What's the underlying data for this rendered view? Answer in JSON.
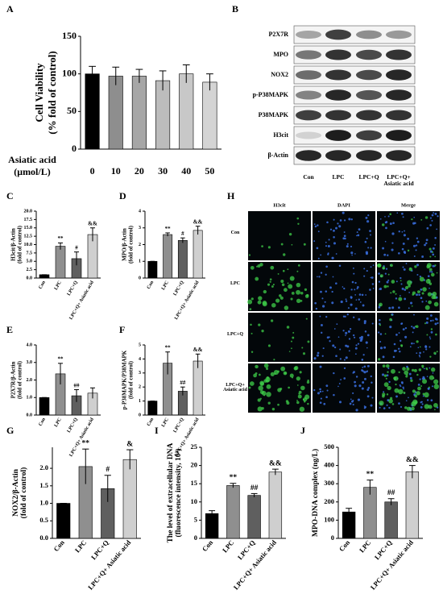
{
  "chart_data": [
    {
      "type": "bar",
      "label": "A",
      "ylabel": [
        "Cell Viability",
        "(% fold of control)"
      ],
      "xlabel": [
        "Asiatic acid",
        "(μmol/L)"
      ],
      "categories": [
        "0",
        "10",
        "20",
        "30",
        "40",
        "50"
      ],
      "values": [
        100,
        97,
        97,
        91,
        100,
        89
      ],
      "errors": [
        10,
        12,
        9,
        13,
        12,
        11
      ],
      "colors": [
        "#000000",
        "#8e8e8e",
        "#a6a6a6",
        "#bcbcbc",
        "#c8c8c8",
        "#d4d4d4"
      ],
      "ylim": [
        0,
        150
      ],
      "yticks": [
        0,
        50,
        100,
        150
      ]
    },
    {
      "type": "bar",
      "label": "C",
      "ylabel": [
        "H3cit/β-Actin",
        "(fold of control)"
      ],
      "categories": [
        "Con",
        "LPC",
        "LPC+Q",
        "LPC+Q+ Asiatic acid"
      ],
      "values": [
        1,
        9.5,
        5.8,
        13
      ],
      "errors": [
        0,
        1,
        2,
        2
      ],
      "annotations": [
        null,
        "**",
        "#",
        "&&"
      ],
      "colors": [
        "#000000",
        "#8f8f8f",
        "#5f5f5f",
        "#cfcfcf"
      ],
      "ylim": [
        0,
        20
      ],
      "yticks": [
        {
          "value": 0,
          "label": "0.0"
        },
        2.5,
        {
          "value": 5,
          "label": "5.0"
        },
        7.5,
        {
          "value": 10,
          "label": "10.0"
        },
        12.5,
        {
          "value": 15,
          "label": "15.0"
        },
        17.5,
        {
          "value": 20,
          "label": "20.0"
        }
      ]
    },
    {
      "type": "bar",
      "label": "D",
      "ylabel": [
        "MPO/β-Actin",
        "(fold of control)"
      ],
      "categories": [
        "Con",
        "LPC",
        "LPC+Q",
        "LPC+Q+ Asiatic acid"
      ],
      "values": [
        1,
        2.6,
        2.25,
        2.85
      ],
      "errors": [
        0,
        0.1,
        0.15,
        0.25
      ],
      "annotations": [
        null,
        "**",
        "#",
        "&&"
      ],
      "colors": [
        "#000000",
        "#8f8f8f",
        "#5f5f5f",
        "#cfcfcf"
      ],
      "ylim": [
        0,
        4
      ],
      "yticks": [
        0,
        1,
        2,
        3,
        4
      ]
    },
    {
      "type": "bar",
      "label": "E",
      "ylabel": [
        "P2X7R/β-Actin",
        "(fold of control)"
      ],
      "categories": [
        "Con",
        "LPC",
        "LPC+Q",
        "LPC+Q+ Asiatic acid"
      ],
      "values": [
        1,
        2.35,
        1.1,
        1.25
      ],
      "errors": [
        0,
        0.6,
        0.35,
        0.3
      ],
      "annotations": [
        null,
        "**",
        "##",
        null
      ],
      "colors": [
        "#000000",
        "#8f8f8f",
        "#5f5f5f",
        "#cfcfcf"
      ],
      "ylim": [
        0,
        4
      ],
      "yticks": [
        {
          "value": 0,
          "label": "0.0"
        },
        {
          "value": 1,
          "label": "1.0"
        },
        {
          "value": 2,
          "label": "2.0"
        },
        {
          "value": 3,
          "label": "3.0"
        },
        {
          "value": 4,
          "label": "4.0"
        }
      ]
    },
    {
      "type": "bar",
      "label": "F",
      "ylabel": [
        "p-P38MAPK/P38MAPK",
        "(fold of control)"
      ],
      "categories": [
        "Con",
        "LPC",
        "LPC+Q",
        "LPC+Q+ Asiatic acid"
      ],
      "values": [
        1,
        3.7,
        1.7,
        3.85
      ],
      "errors": [
        0,
        0.8,
        0.3,
        0.5
      ],
      "annotations": [
        null,
        "**",
        "##",
        "&&"
      ],
      "colors": [
        "#000000",
        "#8f8f8f",
        "#5f5f5f",
        "#cfcfcf"
      ],
      "ylim": [
        0,
        5
      ],
      "yticks": [
        0,
        1,
        2,
        3,
        4,
        5
      ]
    },
    {
      "type": "bar",
      "label": "G",
      "ylabel": [
        "NOX2/β-Actin",
        "(fold of control)"
      ],
      "categories": [
        "Con",
        "LPC",
        "LPC+Q",
        "LPC+Q+ Asiatic acid"
      ],
      "values": [
        1,
        2.05,
        1.42,
        2.25
      ],
      "errors": [
        0,
        0.5,
        0.38,
        0.28
      ],
      "annotations": [
        null,
        "**",
        "#",
        "&"
      ],
      "colors": [
        "#000000",
        "#8f8f8f",
        "#5f5f5f",
        "#cfcfcf"
      ],
      "ylim": [
        0,
        2.6
      ],
      "yticks": [
        {
          "value": 0,
          "label": "0.0"
        },
        0.5,
        {
          "value": 1,
          "label": "1.0"
        },
        1.5,
        {
          "value": 2,
          "label": "2.0"
        }
      ]
    },
    {
      "type": "bar",
      "label": "I",
      "ylabel": [
        "The level of extracellular DNA",
        "(fluorescence intensity, 10³)"
      ],
      "categories": [
        "Con",
        "LPC",
        "LPC+Q",
        "LPC+Q+ Asiatic acid"
      ],
      "values": [
        6.8,
        14.5,
        11.8,
        18.2
      ],
      "errors": [
        0.8,
        0.6,
        0.5,
        0.8
      ],
      "annotations": [
        null,
        "**",
        "##",
        "&&"
      ],
      "colors": [
        "#000000",
        "#8f8f8f",
        "#5f5f5f",
        "#cfcfcf"
      ],
      "ylim": [
        0,
        25
      ],
      "yticks": [
        0,
        5,
        10,
        15,
        20,
        25
      ]
    },
    {
      "type": "bar",
      "label": "J",
      "ylabel": [
        "MPO-DNA complex (ng/L)"
      ],
      "categories": [
        "Con",
        "LPC",
        "LPC+Q",
        "LPC+Q+ Asiatic acid"
      ],
      "values": [
        145,
        280,
        200,
        365
      ],
      "errors": [
        20,
        40,
        18,
        35
      ],
      "annotations": [
        null,
        "**",
        "##",
        "&&"
      ],
      "colors": [
        "#000000",
        "#8f8f8f",
        "#5f5f5f",
        "#cfcfcf"
      ],
      "ylim": [
        0,
        500
      ],
      "yticks": [
        0,
        100,
        200,
        300,
        400,
        500
      ]
    }
  ],
  "blot": {
    "label": "B",
    "proteins": [
      "P2X7R",
      "MPO",
      "NOX2",
      "p-P38MAPK",
      "P38MAPK",
      "H3cit",
      "β-Actin"
    ],
    "lanes": [
      "Con",
      "LPC",
      "LPC+Q",
      "LPC+Q+ Asiatic acid"
    ]
  },
  "micrographs": {
    "label": "H",
    "channels": [
      "H3cit",
      "DAPI",
      "Merge"
    ],
    "groups": [
      "Con",
      "LPC",
      "LPC+Q",
      "LPC+Q+ Asiatic acid"
    ]
  }
}
